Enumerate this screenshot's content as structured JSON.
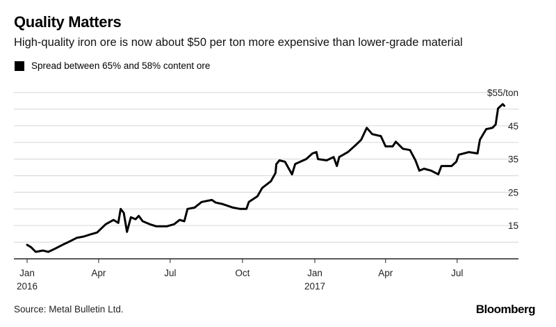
{
  "header": {
    "title": "Quality Matters",
    "subtitle": "High-quality iron ore is now about $50 per ton more expensive than lower-grade material"
  },
  "footer": {
    "source": "Source: Metal Bulletin Ltd.",
    "brand": "Bloomberg"
  },
  "chart_data": {
    "type": "line",
    "title": "Quality Matters",
    "subtitle": "High-quality iron ore is now about $50 per ton more expensive than lower-grade material",
    "xlabel": "",
    "ylabel": "$/ton",
    "ylim": [
      5,
      55
    ],
    "y_gridlines": [
      10,
      15,
      20,
      25,
      30,
      35,
      40,
      45,
      50,
      55
    ],
    "y_tick_labels": [
      {
        "value": 55,
        "label": "$55/ton"
      },
      {
        "value": 45,
        "label": "45"
      },
      {
        "value": 35,
        "label": "35"
      },
      {
        "value": 25,
        "label": "25"
      },
      {
        "value": 15,
        "label": "15"
      }
    ],
    "xlim": [
      "2016-01-01",
      "2017-08-31"
    ],
    "x_ticks": [
      {
        "date": "2016-01-01",
        "label": "Jan",
        "sublabel": "2016"
      },
      {
        "date": "2016-04-01",
        "label": "Apr",
        "sublabel": ""
      },
      {
        "date": "2016-07-01",
        "label": "Jul",
        "sublabel": ""
      },
      {
        "date": "2016-10-01",
        "label": "Oct",
        "sublabel": ""
      },
      {
        "date": "2017-01-01",
        "label": "Jan",
        "sublabel": "2017"
      },
      {
        "date": "2017-04-01",
        "label": "Apr",
        "sublabel": ""
      },
      {
        "date": "2017-07-01",
        "label": "Jul",
        "sublabel": ""
      }
    ],
    "grid": true,
    "legend": {
      "position": "top-left",
      "entries": [
        {
          "name": "Spread between 65% and 58% content ore",
          "color": "#000000"
        }
      ]
    },
    "series": [
      {
        "name": "Spread between 65% and 58% content ore",
        "color": "#000000",
        "points": [
          [
            "2016-01-01",
            9.2
          ],
          [
            "2016-01-06",
            8.5
          ],
          [
            "2016-01-12",
            7.1
          ],
          [
            "2016-01-21",
            7.5
          ],
          [
            "2016-01-28",
            7.1
          ],
          [
            "2016-02-06",
            8.1
          ],
          [
            "2016-02-15",
            9.2
          ],
          [
            "2016-02-24",
            10.2
          ],
          [
            "2016-03-04",
            11.3
          ],
          [
            "2016-03-13",
            11.7
          ],
          [
            "2016-03-21",
            12.3
          ],
          [
            "2016-03-30",
            12.9
          ],
          [
            "2016-04-10",
            15.4
          ],
          [
            "2016-04-20",
            16.7
          ],
          [
            "2016-04-26",
            15.8
          ],
          [
            "2016-04-29",
            20.0
          ],
          [
            "2016-05-03",
            18.8
          ],
          [
            "2016-05-07",
            13.1
          ],
          [
            "2016-05-12",
            17.5
          ],
          [
            "2016-05-18",
            16.9
          ],
          [
            "2016-05-22",
            17.9
          ],
          [
            "2016-05-27",
            16.3
          ],
          [
            "2016-06-05",
            15.4
          ],
          [
            "2016-06-13",
            14.8
          ],
          [
            "2016-06-27",
            14.8
          ],
          [
            "2016-07-06",
            15.4
          ],
          [
            "2016-07-13",
            16.7
          ],
          [
            "2016-07-19",
            16.3
          ],
          [
            "2016-07-23",
            20.0
          ],
          [
            "2016-08-01",
            20.4
          ],
          [
            "2016-08-10",
            22.1
          ],
          [
            "2016-08-23",
            22.7
          ],
          [
            "2016-08-28",
            21.9
          ],
          [
            "2016-09-05",
            21.5
          ],
          [
            "2016-09-19",
            20.4
          ],
          [
            "2016-09-28",
            20.0
          ],
          [
            "2016-10-06",
            20.0
          ],
          [
            "2016-10-09",
            22.1
          ],
          [
            "2016-10-20",
            23.8
          ],
          [
            "2016-10-26",
            26.3
          ],
          [
            "2016-11-06",
            28.3
          ],
          [
            "2016-11-12",
            30.8
          ],
          [
            "2016-11-13",
            33.5
          ],
          [
            "2016-11-17",
            34.6
          ],
          [
            "2016-11-24",
            34.2
          ],
          [
            "2016-11-28",
            32.5
          ],
          [
            "2016-12-03",
            30.4
          ],
          [
            "2016-12-07",
            33.5
          ],
          [
            "2016-12-21",
            35.0
          ],
          [
            "2016-12-29",
            36.7
          ],
          [
            "2017-01-03",
            37.1
          ],
          [
            "2017-01-05",
            35.0
          ],
          [
            "2017-01-16",
            34.6
          ],
          [
            "2017-01-25",
            35.6
          ],
          [
            "2017-01-29",
            32.9
          ],
          [
            "2017-02-01",
            35.6
          ],
          [
            "2017-02-12",
            37.1
          ],
          [
            "2017-02-22",
            39.2
          ],
          [
            "2017-03-01",
            40.8
          ],
          [
            "2017-03-08",
            44.4
          ],
          [
            "2017-03-15",
            42.5
          ],
          [
            "2017-03-26",
            41.9
          ],
          [
            "2017-04-01",
            38.8
          ],
          [
            "2017-04-10",
            38.8
          ],
          [
            "2017-04-14",
            40.2
          ],
          [
            "2017-04-23",
            38.1
          ],
          [
            "2017-05-02",
            37.7
          ],
          [
            "2017-05-09",
            34.6
          ],
          [
            "2017-05-14",
            31.5
          ],
          [
            "2017-05-20",
            32.1
          ],
          [
            "2017-05-29",
            31.5
          ],
          [
            "2017-06-07",
            30.4
          ],
          [
            "2017-06-11",
            32.9
          ],
          [
            "2017-06-24",
            32.9
          ],
          [
            "2017-06-30",
            34.2
          ],
          [
            "2017-07-03",
            36.3
          ],
          [
            "2017-07-16",
            37.1
          ],
          [
            "2017-07-27",
            36.7
          ],
          [
            "2017-07-30",
            40.8
          ],
          [
            "2017-08-07",
            44.0
          ],
          [
            "2017-08-15",
            44.4
          ],
          [
            "2017-08-19",
            45.4
          ],
          [
            "2017-08-22",
            50.2
          ],
          [
            "2017-08-28",
            51.5
          ],
          [
            "2017-08-30",
            51.0
          ]
        ]
      }
    ]
  }
}
